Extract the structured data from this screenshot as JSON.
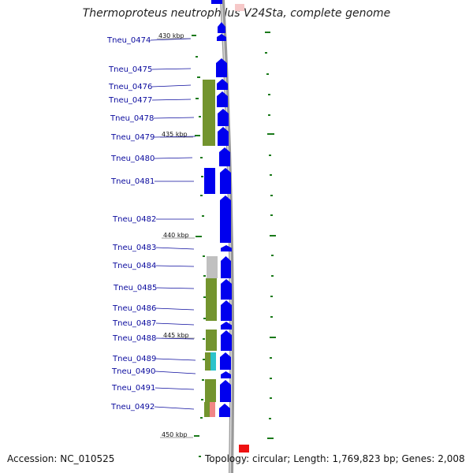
{
  "title": "Thermoproteus neutrophilus V24Sta, complete genome",
  "footer": {
    "accession": "Accession: NC_010525",
    "topology": "Topology: circular; Length: 1,769,823 bp; Genes: 2,008"
  },
  "kbp_markers": [
    "430 kbp",
    "435 kbp",
    "440 kbp",
    "445 kbp",
    "450 kbp"
  ],
  "genes": [
    "Tneu_0474",
    "Tneu_0475",
    "Tneu_0476",
    "Tneu_0477",
    "Tneu_0478",
    "Tneu_0479",
    "Tneu_0480",
    "Tneu_0481",
    "Tneu_0482",
    "Tneu_0483",
    "Tneu_0484",
    "Tneu_0485",
    "Tneu_0486",
    "Tneu_0487",
    "Tneu_0488",
    "Tneu_0489",
    "Tneu_0490",
    "Tneu_0491",
    "Tneu_0492"
  ],
  "colors": {
    "cds": "#0000ee",
    "cog_green": "#6b8e23",
    "cog_gray": "#bdbdbd",
    "cog_cyan": "#20c0c8",
    "cog_pink": "#f08080",
    "gc_tick": "#1a7a1a",
    "backbone": "#999999",
    "label_line": "#0b0b9e"
  }
}
